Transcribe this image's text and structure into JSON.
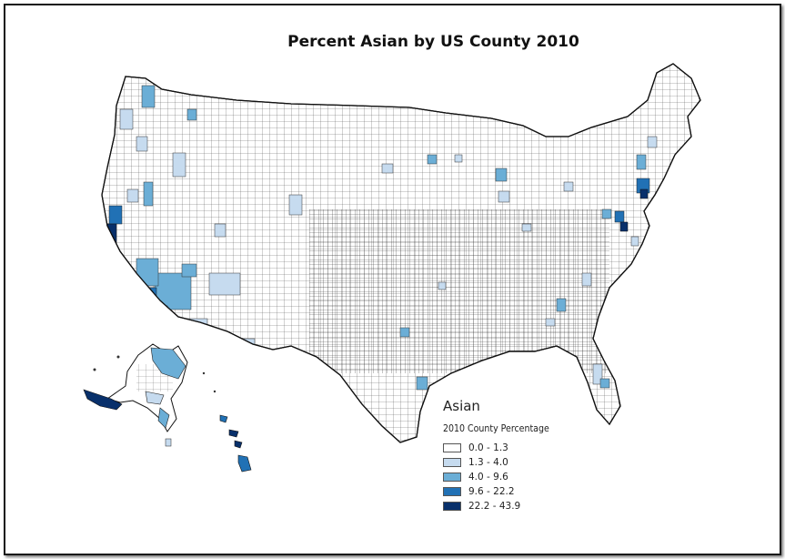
{
  "map": {
    "title": "Percent Asian by US County 2010",
    "legend": {
      "title": "Asian",
      "subtitle": "2010 County Percentage",
      "classes": [
        {
          "label": "0.0 - 1.3",
          "color": "#ffffff"
        },
        {
          "label": "1.3 - 4.0",
          "color": "#c6dbef"
        },
        {
          "label": "4.0 - 9.6",
          "color": "#6baed6"
        },
        {
          "label": "9.6 - 22.2",
          "color": "#2171b5"
        },
        {
          "label": "22.2 - 43.9",
          "color": "#08306b"
        }
      ]
    }
  }
}
